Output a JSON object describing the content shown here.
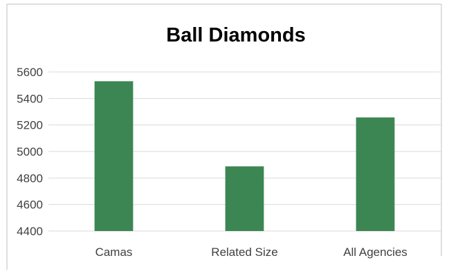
{
  "chart_data": {
    "type": "bar",
    "title": "Ball Diamonds",
    "categories": [
      "Camas",
      "Related Size",
      "All Agencies"
    ],
    "series": [
      {
        "values": [
          5530,
          4888,
          5257
        ]
      }
    ],
    "ylim": [
      4400,
      5600
    ],
    "yticks": [
      4400,
      4600,
      4800,
      5000,
      5200,
      5400,
      5600
    ],
    "ytick_labels": [
      "4400",
      "4600",
      "4800",
      "5000",
      "5200",
      "5400",
      "5600"
    ],
    "xlabel": "",
    "ylabel": "",
    "grid": true,
    "legend": "none",
    "bar_color": "#3c8653",
    "grid_color": "#d9d9d9",
    "border_color": "#bfbfbf"
  }
}
